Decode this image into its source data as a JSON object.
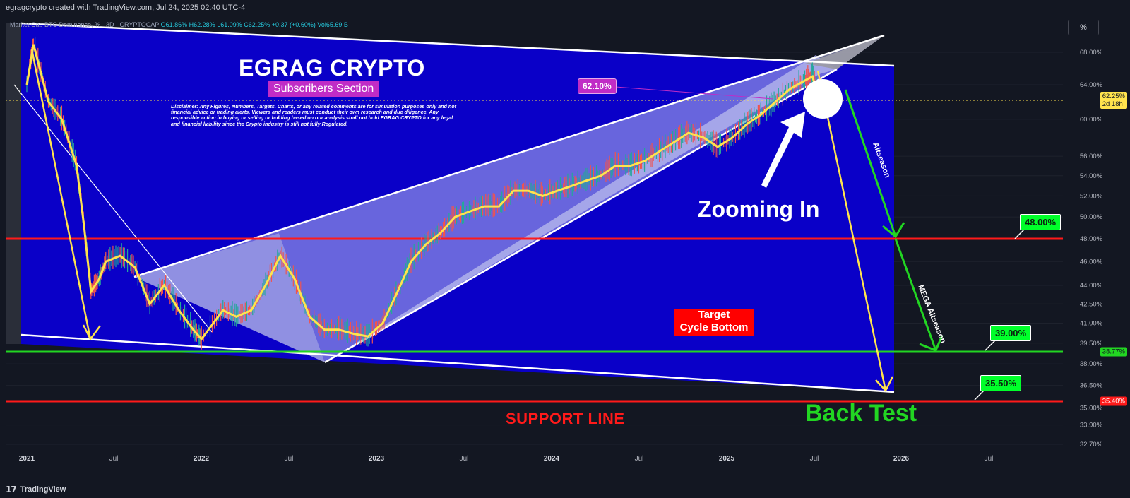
{
  "header": {
    "credit": "egragcrypto created with TradingView.com, Jul 24, 2025 02:40 UTC-4"
  },
  "legend": {
    "symbol": "Market Cap BTC Dominance, % · 3D · CRYPTOCAP",
    "open": "O61.86%",
    "high": "H62.28%",
    "low": "L61.09%",
    "close": "C62.25%",
    "change": "+0.37 (+0.60%)",
    "volume": "Vol65.69 B"
  },
  "scale_button": "%",
  "annotations": {
    "title": "EGRAG CRYPTO",
    "subtitle": "Subscribers Section",
    "disclaimer": "Disclaimer: Any Figures, Numbers, Targets, Charts, or any related comments are for simulation purposes only and not financial advice or trading alerts. Viewers and readers must conduct their own research and due diligence. Any responsible action in buying or selling or holding based on our analysis shall not hold EGRAG CRYPTO for any legal and financial liability since the Crypto industry is still not fully Regulated.",
    "zooming": "Zooming In",
    "target_line1": "Target",
    "target_line2": "Cycle Bottom",
    "support": "SUPPORT LINE",
    "backtest": "Back Test",
    "label_62": "62.10%",
    "tag_48": "48.00%",
    "tag_39": "39.00%",
    "tag_35": "35.50%",
    "altseason": "Altseason",
    "mega_altseason": "MEGA Altseason"
  },
  "price_tags": {
    "current_price": "62.25%",
    "countdown": "2d 18h",
    "green_line": "38.77%",
    "red_line": "35.40%"
  },
  "footer": {
    "brand": "TradingView"
  },
  "colors": {
    "background": "#131722",
    "panel": "#0a00c8",
    "support_red": "#ff1a1a",
    "green": "#22d622",
    "yellow": "#ffe34d",
    "magenta": "#c02cc6"
  },
  "chart_data": {
    "type": "line",
    "y_scale": "log",
    "yaxis_ticks": [
      "68.00%",
      "64.00%",
      "60.00%",
      "56.00%",
      "54.00%",
      "52.00%",
      "50.00%",
      "48.00%",
      "46.00%",
      "44.00%",
      "42.50%",
      "41.00%",
      "39.50%",
      "38.00%",
      "36.50%",
      "35.00%",
      "33.90%",
      "32.70%"
    ],
    "xaxis_ticks": [
      "2021",
      "Jul",
      "2022",
      "Jul",
      "2023",
      "Jul",
      "2024",
      "Jul",
      "2025",
      "Jul",
      "2026",
      "Jul"
    ],
    "horizontal_levels": [
      {
        "value": 48.0,
        "color": "red"
      },
      {
        "value": 38.77,
        "color": "green"
      },
      {
        "value": 35.4,
        "color": "red"
      }
    ],
    "series": [
      {
        "values": [
          [
            "2021-01-01",
            64.0
          ],
          [
            "2021-01-15",
            69.0
          ],
          [
            "2021-02-15",
            62.0
          ],
          [
            "2021-03-15",
            60.0
          ],
          [
            "2021-04-15",
            55.0
          ],
          [
            "2021-05-01",
            49.0
          ],
          [
            "2021-05-15",
            43.5
          ],
          [
            "2021-06-01",
            44.5
          ],
          [
            "2021-06-15",
            46.0
          ],
          [
            "2021-07-15",
            46.5
          ],
          [
            "2021-08-15",
            45.5
          ],
          [
            "2021-09-15",
            42.5
          ],
          [
            "2021-10-15",
            44.0
          ],
          [
            "2021-11-15",
            42.0
          ],
          [
            "2021-12-15",
            40.5
          ],
          [
            "2022-01-01",
            39.8
          ],
          [
            "2022-02-15",
            42.0
          ],
          [
            "2022-03-15",
            41.5
          ],
          [
            "2022-04-15",
            42.0
          ],
          [
            "2022-05-15",
            44.0
          ],
          [
            "2022-06-15",
            46.5
          ],
          [
            "2022-07-15",
            44.5
          ],
          [
            "2022-08-15",
            41.5
          ],
          [
            "2022-09-15",
            40.5
          ],
          [
            "2022-10-15",
            40.5
          ],
          [
            "2022-11-15",
            40.2
          ],
          [
            "2022-12-15",
            40.0
          ],
          [
            "2023-01-15",
            41.0
          ],
          [
            "2023-02-15",
            43.5
          ],
          [
            "2023-03-15",
            46.0
          ],
          [
            "2023-04-15",
            47.5
          ],
          [
            "2023-05-15",
            48.5
          ],
          [
            "2023-06-15",
            50.0
          ],
          [
            "2023-07-15",
            50.5
          ],
          [
            "2023-08-15",
            51.0
          ],
          [
            "2023-09-15",
            51.0
          ],
          [
            "2023-10-15",
            52.5
          ],
          [
            "2023-11-15",
            52.5
          ],
          [
            "2023-12-15",
            52.0
          ],
          [
            "2024-01-15",
            52.5
          ],
          [
            "2024-02-15",
            53.0
          ],
          [
            "2024-03-15",
            53.5
          ],
          [
            "2024-04-15",
            54.0
          ],
          [
            "2024-05-15",
            55.0
          ],
          [
            "2024-06-15",
            55.0
          ],
          [
            "2024-07-15",
            55.5
          ],
          [
            "2024-08-15",
            56.5
          ],
          [
            "2024-09-15",
            57.5
          ],
          [
            "2024-10-15",
            58.5
          ],
          [
            "2024-11-15",
            58.0
          ],
          [
            "2024-12-15",
            57.0
          ],
          [
            "2025-01-15",
            58.0
          ],
          [
            "2025-02-15",
            59.5
          ],
          [
            "2025-03-15",
            60.5
          ],
          [
            "2025-04-15",
            62.0
          ],
          [
            "2025-05-15",
            63.5
          ],
          [
            "2025-06-15",
            64.5
          ],
          [
            "2025-07-01",
            65.0
          ],
          [
            "2025-07-15",
            62.25
          ]
        ]
      }
    ]
  }
}
